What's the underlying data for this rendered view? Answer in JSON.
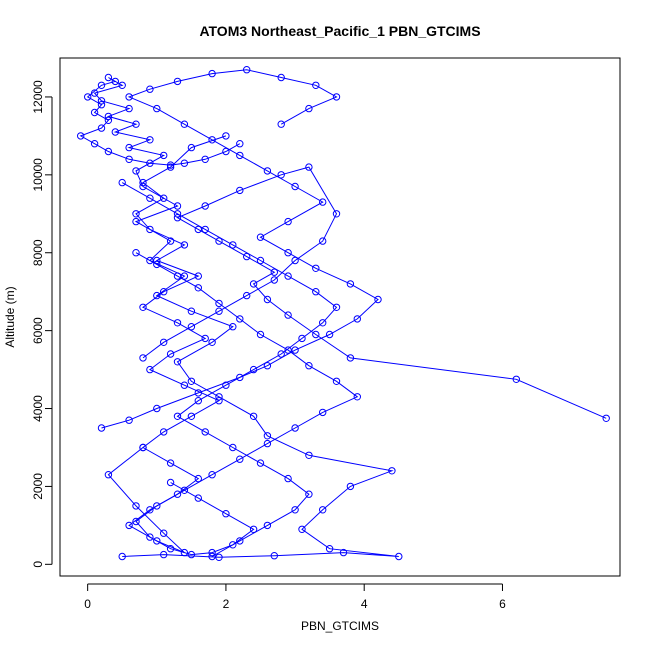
{
  "chart_data": {
    "type": "line",
    "title": "ATOM3 Northeast_Pacific_1 PBN_GTCIMS",
    "xlabel": "PBN_GTCIMS",
    "ylabel": "Altitude (m)",
    "xlim": [
      -0.4,
      7.7
    ],
    "ylim": [
      -300,
      13000
    ],
    "xticks": [
      0,
      2,
      4,
      6
    ],
    "yticks": [
      0,
      2000,
      4000,
      6000,
      8000,
      10000,
      12000
    ],
    "grid": false,
    "marker": "open-circle",
    "color": "#0000ff",
    "series": [
      {
        "x": [
          0.5,
          1.1,
          1.9,
          2.7,
          3.7,
          4.5,
          3.5,
          3.1,
          3.4,
          3.8,
          4.4,
          3.2,
          2.6,
          2.4,
          1.9,
          1.5,
          1.3,
          1.8,
          2.1,
          1.5,
          1.0,
          1.4,
          0.9,
          1.2,
          0.7,
          1.3,
          0.8,
          0.7,
          1.1,
          0.6,
          0.9,
          0.4,
          0.7,
          0.3,
          0.6,
          0.2,
          0.1,
          0.5,
          0.3,
          0.4,
          0.2,
          0.0,
          0.2,
          0.1,
          0.3,
          0.2,
          -0.1,
          0.1,
          0.3,
          0.6,
          0.9,
          1.2,
          1.4,
          1.7,
          2.0,
          2.2
        ],
        "y": [
          200,
          250,
          180,
          220,
          300,
          200,
          400,
          900,
          1400,
          2000,
          2400,
          2800,
          3300,
          3800,
          4300,
          4700,
          5200,
          5700,
          6100,
          6500,
          6900,
          7400,
          7800,
          8300,
          8800,
          9200,
          9700,
          10100,
          10500,
          10700,
          10900,
          11100,
          11300,
          11500,
          11700,
          11900,
          12100,
          12300,
          12500,
          12400,
          12300,
          12000,
          11800,
          11600,
          11400,
          11200,
          11000,
          10800,
          10600,
          10400,
          10300,
          10250,
          10300,
          10400,
          10600,
          10800
        ]
      },
      {
        "x": [
          2.0,
          1.5,
          1.2,
          0.8,
          1.1,
          0.7,
          0.9,
          1.4,
          1.0,
          1.6,
          1.1,
          0.8,
          1.3,
          1.7,
          1.2,
          0.9,
          1.4,
          1.9,
          1.5,
          1.1,
          0.8,
          1.2,
          1.6,
          1.3,
          0.9,
          0.6,
          1.0,
          1.4,
          1.1,
          0.7,
          0.3,
          0.8
        ],
        "y": [
          11000,
          10700,
          10200,
          9800,
          9400,
          9000,
          8600,
          8200,
          7800,
          7400,
          7000,
          6600,
          6200,
          5800,
          5400,
          5000,
          4600,
          4200,
          3800,
          3400,
          3000,
          2600,
          2200,
          1800,
          1400,
          1000,
          600,
          300,
          800,
          1500,
          2300,
          3000
        ]
      },
      {
        "x": [
          0.2,
          0.6,
          1.0,
          1.6,
          2.2,
          2.6,
          3.0,
          3.5,
          3.9,
          4.2,
          3.8,
          3.3,
          2.9,
          2.5,
          2.9,
          3.4,
          3.0,
          2.6,
          2.2,
          1.8,
          1.4,
          1.0,
          0.6,
          0.9,
          1.3,
          1.8,
          2.3,
          2.8,
          3.3,
          3.6,
          3.2,
          2.8
        ],
        "y": [
          3500,
          3700,
          4000,
          4400,
          4800,
          5100,
          5500,
          5900,
          6300,
          6800,
          7200,
          7600,
          8000,
          8400,
          8800,
          9300,
          9700,
          10100,
          10500,
          10900,
          11300,
          11700,
          12000,
          12200,
          12400,
          12600,
          12700,
          12500,
          12300,
          12000,
          11700,
          11300
        ]
      },
      {
        "x": [
          7.5,
          6.2,
          3.8,
          3.3,
          2.9,
          2.6,
          2.4,
          2.7,
          2.3,
          1.9,
          1.6,
          1.3,
          1.7,
          2.2,
          2.8,
          3.2,
          3.6,
          3.4,
          3.0,
          2.7,
          2.3,
          1.9,
          1.5,
          1.1,
          0.8
        ],
        "y": [
          3750,
          4750,
          5300,
          5900,
          6400,
          6800,
          7200,
          7500,
          7900,
          8300,
          8600,
          8900,
          9200,
          9600,
          10000,
          10200,
          9000,
          8300,
          7800,
          7300,
          6900,
          6500,
          6100,
          5700,
          5300
        ]
      },
      {
        "x": [
          1.8,
          2.2,
          2.6,
          3.0,
          3.2,
          2.9,
          2.5,
          2.1,
          1.7,
          1.3,
          1.6,
          2.0,
          2.4,
          2.8,
          3.1,
          3.4,
          3.6,
          3.3,
          2.9,
          2.5,
          2.1,
          1.7,
          1.3,
          0.9,
          0.5
        ],
        "y": [
          200,
          600,
          1000,
          1400,
          1800,
          2200,
          2600,
          3000,
          3400,
          3800,
          4200,
          4600,
          5000,
          5400,
          5800,
          6200,
          6600,
          7000,
          7400,
          7800,
          8200,
          8600,
          9000,
          9400,
          9800
        ]
      },
      {
        "x": [
          0.7,
          1.0,
          1.3,
          1.6,
          1.9,
          2.2,
          2.5,
          2.9,
          3.2,
          3.6,
          3.9,
          3.4,
          3.0,
          2.6,
          2.2,
          1.8,
          1.4,
          1.0,
          0.7,
          0.9,
          1.2,
          1.5,
          1.8,
          2.1,
          2.4,
          2.0,
          1.6,
          1.2
        ],
        "y": [
          8000,
          7700,
          7400,
          7100,
          6700,
          6300,
          5900,
          5500,
          5100,
          4700,
          4300,
          3900,
          3500,
          3100,
          2700,
          2300,
          1900,
          1500,
          1100,
          700,
          400,
          250,
          300,
          500,
          900,
          1300,
          1700,
          2100
        ]
      }
    ]
  }
}
